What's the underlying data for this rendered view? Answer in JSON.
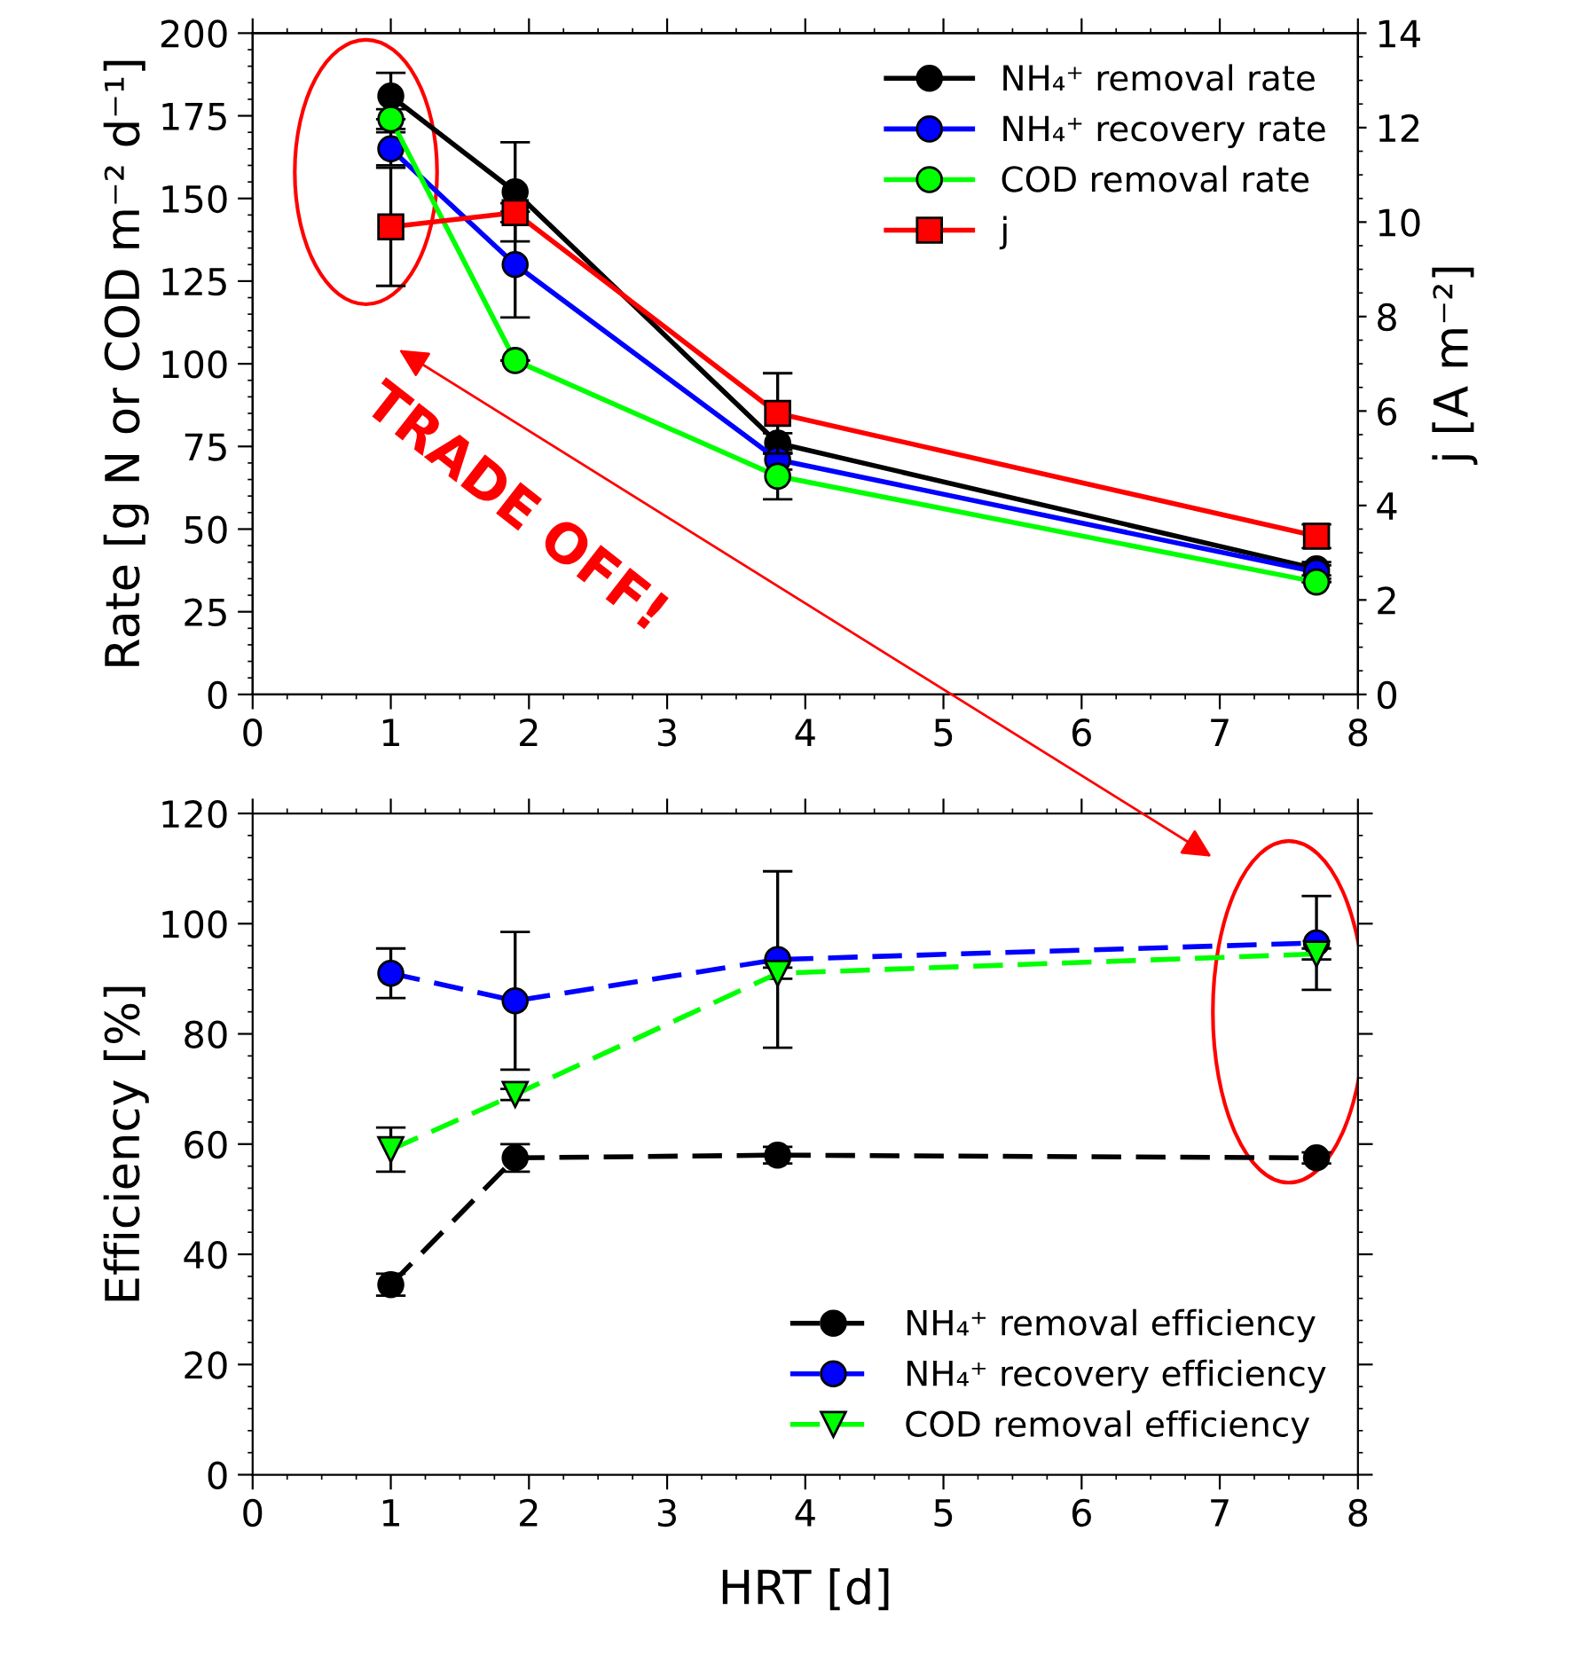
{
  "chart_data": [
    {
      "type": "line",
      "x": [
        1,
        1.9,
        3.8,
        7.7
      ],
      "xlim": [
        0,
        8
      ],
      "xticks": [
        0,
        1,
        2,
        3,
        4,
        5,
        6,
        7,
        8
      ],
      "ylim": [
        0,
        200
      ],
      "yticks": [
        0,
        25,
        50,
        75,
        100,
        125,
        150,
        175,
        200
      ],
      "y2lim": [
        0,
        14
      ],
      "y2ticks": [
        0,
        2,
        4,
        6,
        8,
        10,
        12,
        14
      ],
      "ylabel": "Rate [g N or COD m⁻² d⁻¹]",
      "y2label": "j [A m⁻²]",
      "legend": "top right",
      "line_style": "solid",
      "grid": false,
      "annotations": [
        "TRADE OFF!"
      ],
      "series": [
        {
          "name": "NH₄⁺ removal rate",
          "color": "#000000",
          "marker": "circle",
          "values": [
            181,
            152,
            76,
            38
          ],
          "errors": [
            7,
            15,
            3,
            2
          ]
        },
        {
          "name": "NH₄⁺ recovery rate",
          "color": "#0000ff",
          "marker": "circle",
          "values": [
            165,
            130,
            71,
            37
          ],
          "errors": [
            5,
            16,
            3,
            2
          ]
        },
        {
          "name": "COD removal rate",
          "color": "#00ff00",
          "marker": "circle",
          "values": [
            174,
            101,
            66,
            34
          ],
          "errors": [
            3,
            null,
            7,
            null
          ]
        },
        {
          "name": "j",
          "color": "#ff0000",
          "marker": "square",
          "axis": "y2",
          "values": [
            9.9,
            10.2,
            5.95,
            3.35
          ],
          "errors": [
            1.25,
            0.2,
            0.85,
            0.25
          ]
        }
      ]
    },
    {
      "type": "line",
      "x": [
        1,
        1.9,
        3.8,
        7.7
      ],
      "xlim": [
        0,
        8
      ],
      "xticks": [
        0,
        1,
        2,
        3,
        4,
        5,
        6,
        7,
        8
      ],
      "ylim": [
        0,
        120
      ],
      "yticks": [
        0,
        20,
        40,
        60,
        80,
        100,
        120
      ],
      "xlabel": "HRT [d]",
      "ylabel": "Efficiency [%]",
      "legend": "bottom right",
      "line_style": "dashed",
      "grid": false,
      "series": [
        {
          "name": "NH₄⁺ removal efficiency",
          "color": "#000000",
          "marker": "circle",
          "values": [
            34.5,
            57.5,
            58,
            57.5
          ],
          "errors": [
            2,
            2.5,
            1.5,
            1
          ]
        },
        {
          "name": "NH₄⁺ recovery efficiency",
          "color": "#0000ff",
          "marker": "circle",
          "values": [
            91,
            86,
            93.5,
            96.5
          ],
          "errors": [
            4.5,
            12.5,
            16,
            8.5
          ]
        },
        {
          "name": "COD removal efficiency",
          "color": "#00ff00",
          "marker": "triangle_down",
          "values": [
            59,
            69,
            91,
            94.5
          ],
          "errors": [
            4,
            1,
            1,
            1
          ]
        }
      ]
    }
  ]
}
